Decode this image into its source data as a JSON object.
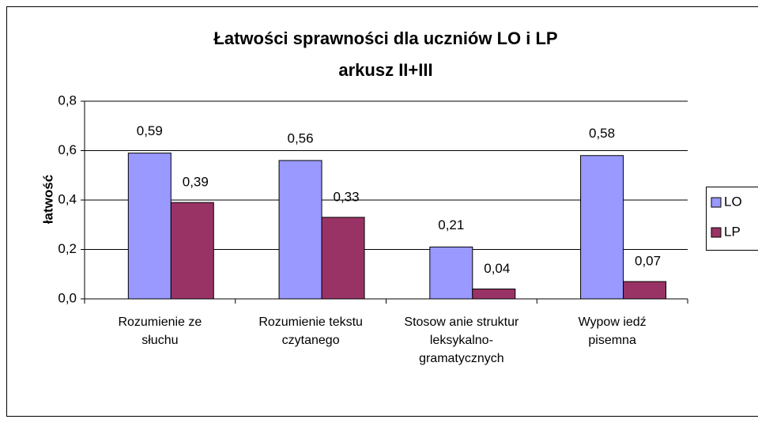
{
  "chart_data": {
    "type": "bar",
    "title": [
      "Łatwości sprawności dla uczniów LO i LP",
      "arkusz II+III"
    ],
    "y_label": "łatwość",
    "categories": [
      "Rozumienie ze słuchu",
      "Rozumienie tekstu czytanego",
      "Stosow anie struktur leksykalno-gramatycznych",
      "Wypow iedź pisemna"
    ],
    "series": [
      {
        "name": "LO",
        "color": "#9999ff",
        "values": [
          0.59,
          0.56,
          0.21,
          0.58
        ],
        "value_labels": [
          "0,59",
          "0,56",
          "0,21",
          "0,58"
        ]
      },
      {
        "name": "LP",
        "color": "#993366",
        "values": [
          0.39,
          0.33,
          0.04,
          0.07
        ],
        "value_labels": [
          "0,39",
          "0,33",
          "0,04",
          "0,07"
        ]
      }
    ],
    "ylim": [
      0,
      0.8
    ],
    "yticks": [
      {
        "value": 0,
        "label": "0,0"
      },
      {
        "value": 0.2,
        "label": "0,2"
      },
      {
        "value": 0.4,
        "label": "0,4"
      },
      {
        "value": 0.6,
        "label": "0,6"
      },
      {
        "value": 0.8,
        "label": "0,8"
      }
    ],
    "grid": true,
    "legend": "right"
  }
}
